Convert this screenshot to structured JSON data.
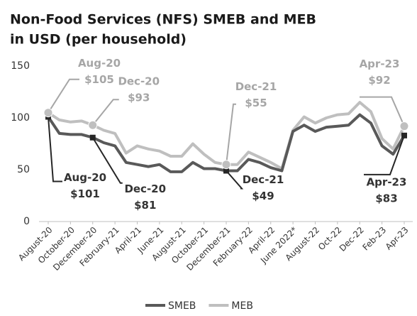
{
  "chart_data": {
    "type": "line",
    "title": [
      "Non-Food Services (NFS) SMEB and MEB",
      "in USD (per household)"
    ],
    "categories": [
      "August-20",
      null,
      "October-20",
      null,
      "December-20",
      null,
      "February-21",
      null,
      "April-21",
      null,
      "June-21",
      null,
      "August-21",
      null,
      "October-21",
      null,
      "December-21",
      null,
      "February-22",
      null,
      "April-22",
      null,
      "June 2022*",
      null,
      "August-22",
      null,
      "Oct-22",
      null,
      "Dec-22",
      null,
      "Feb-23",
      null,
      "Apr-23"
    ],
    "ylim": [
      0,
      150
    ],
    "yticks": [
      0,
      50,
      100,
      150
    ],
    "legend": "bottom",
    "series": [
      {
        "name": "SMEB",
        "color": "#595959",
        "values": [
          101,
          85,
          84,
          84,
          81,
          76,
          73,
          57,
          55,
          53,
          55,
          48,
          48,
          57,
          51,
          51,
          49,
          49,
          60,
          57,
          52,
          49,
          87,
          93,
          87,
          91,
          92,
          93,
          103,
          95,
          73,
          65,
          83
        ],
        "date_labels": [
          "Aug-20",
          null,
          null,
          null,
          "Dec-20",
          null,
          null,
          null,
          null,
          null,
          null,
          null,
          null,
          null,
          null,
          null,
          "Dec-21",
          null,
          null,
          null,
          null,
          null,
          null,
          null,
          null,
          null,
          null,
          null,
          null,
          null,
          null,
          null,
          "Apr-23"
        ],
        "value_labels": [
          "$101",
          null,
          null,
          null,
          "$81",
          null,
          null,
          null,
          null,
          null,
          null,
          null,
          null,
          null,
          null,
          null,
          "$49",
          null,
          null,
          null,
          null,
          null,
          null,
          null,
          null,
          null,
          null,
          null,
          null,
          null,
          null,
          null,
          "$83"
        ]
      },
      {
        "name": "MEB",
        "color": "#bfbfbf",
        "values": [
          105,
          98,
          96,
          97,
          93,
          88,
          85,
          66,
          73,
          70,
          68,
          63,
          63,
          75,
          65,
          57,
          55,
          55,
          67,
          62,
          57,
          51,
          88,
          101,
          95,
          100,
          103,
          104,
          115,
          106,
          80,
          70,
          92
        ],
        "date_labels": [
          "Aug-20",
          null,
          null,
          null,
          "Dec-20",
          null,
          null,
          null,
          null,
          null,
          null,
          null,
          null,
          null,
          null,
          null,
          "Dec-21",
          null,
          null,
          null,
          null,
          null,
          null,
          null,
          null,
          null,
          null,
          null,
          null,
          null,
          null,
          null,
          "Apr-23"
        ],
        "value_labels": [
          "$105",
          null,
          null,
          null,
          "$93",
          null,
          null,
          null,
          null,
          null,
          null,
          null,
          null,
          null,
          null,
          null,
          "$55",
          null,
          null,
          null,
          null,
          null,
          null,
          null,
          null,
          null,
          null,
          null,
          null,
          null,
          null,
          null,
          "$92"
        ]
      }
    ]
  }
}
